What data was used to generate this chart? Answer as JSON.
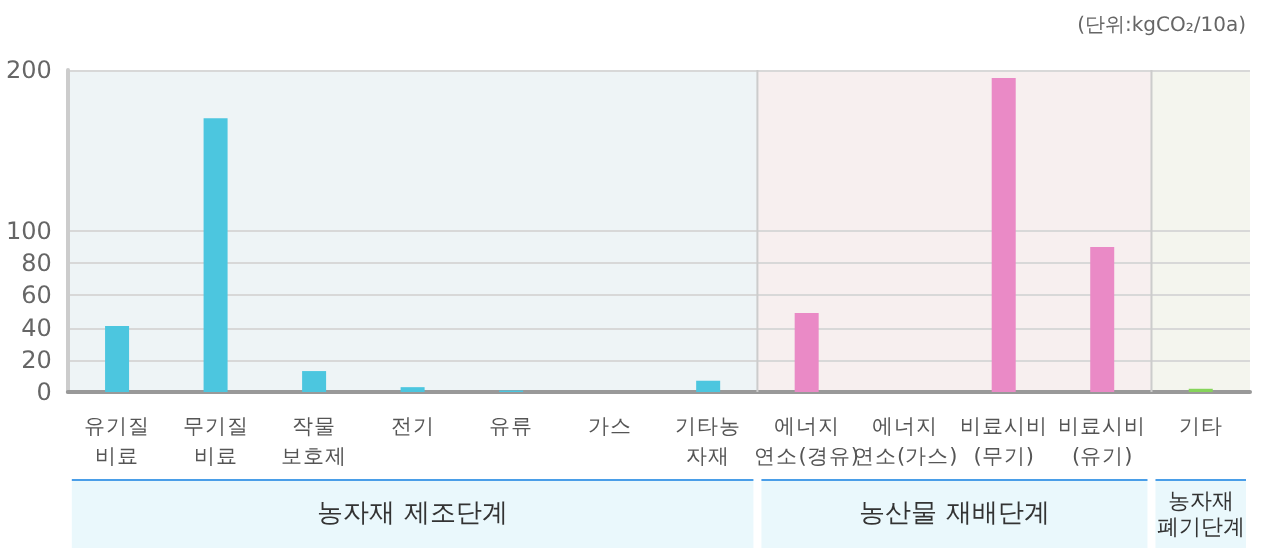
{
  "chart_data": {
    "type": "bar",
    "categories": [
      "유기질\n비료",
      "무기질\n비료",
      "작물\n보호제",
      "전기",
      "유류",
      "가스",
      "기타농\n자재",
      "에너지\n연소(경유)",
      "에너지\n연소(가스)",
      "비료시비\n(무기)",
      "비료시비\n(유기)",
      "기타"
    ],
    "values": [
      41,
      170,
      13,
      3,
      1,
      0,
      7,
      49,
      0,
      195,
      90,
      2
    ],
    "colors": [
      "#4cc6df",
      "#4cc6df",
      "#4cc6df",
      "#4cc6df",
      "#4cc6df",
      "#4cc6df",
      "#4cc6df",
      "#ea8ac6",
      "#ea8ac6",
      "#ea8ac6",
      "#ea8ac6",
      "#86d45a"
    ],
    "ylim": [
      0,
      200
    ],
    "yticks": [
      0,
      20,
      40,
      60,
      80,
      100,
      200
    ],
    "grid": "y",
    "bands": [
      {
        "axis": "x",
        "from": "유기질\n비료",
        "to": "기타농\n자재",
        "color": "#eef4f6"
      },
      {
        "axis": "x",
        "from": "에너지\n연소(경유)",
        "to": "비료시비\n(유기)",
        "color": "#f7efef"
      },
      {
        "axis": "x",
        "from": "기타",
        "to": "기타",
        "color": "#f4f5ee"
      }
    ],
    "annotations": [
      "(단위:kgCO₂/10a)",
      "농자재 제조단계",
      "농산물 재배단계",
      "농자재\n폐기단계"
    ]
  }
}
